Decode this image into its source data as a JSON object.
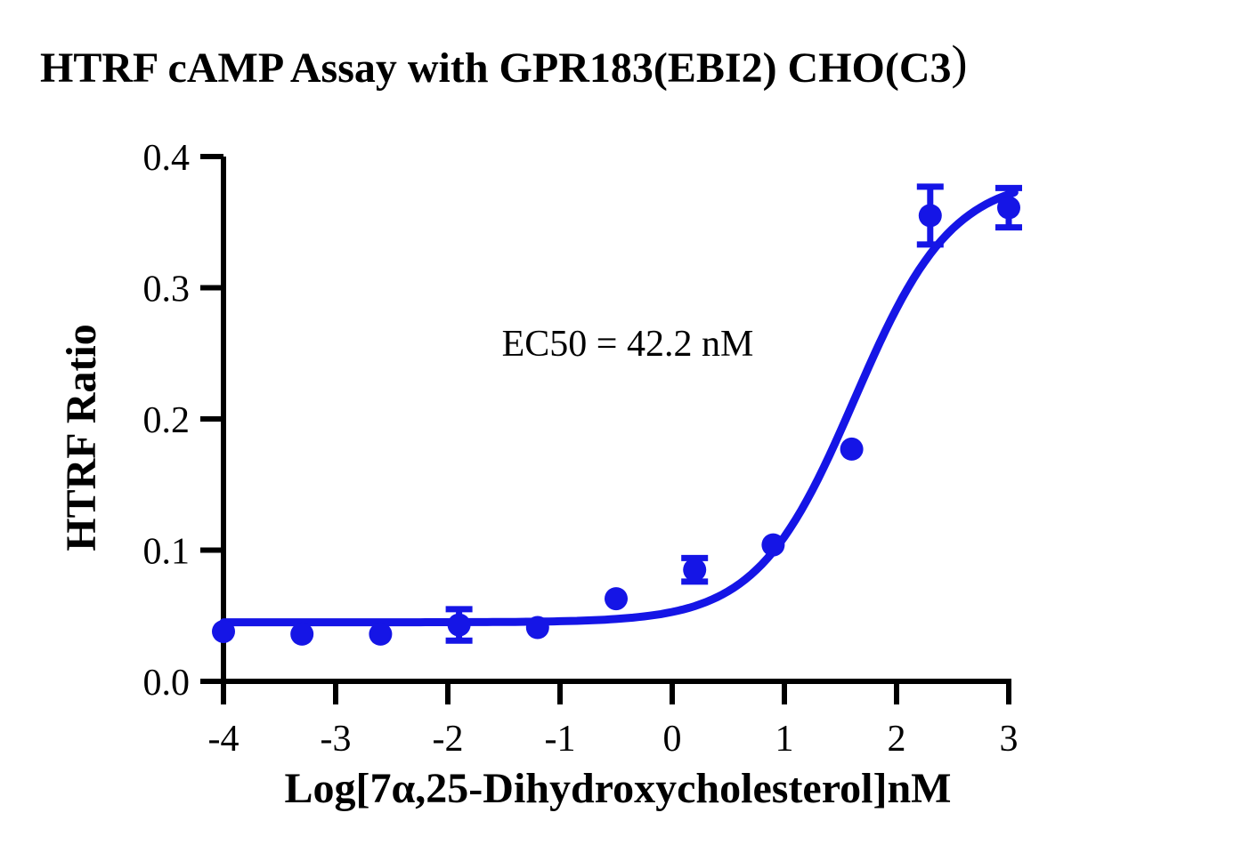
{
  "labels": {
    "title_main": "HTRF cAMP Assay with GPR183(EBI2) CHO(C3",
    "title_paren": ")",
    "ylabel": "HTRF Ratio",
    "xlabel": "Log[7α,25-Dihydroxycholesterol]nM",
    "ec50": "EC50 = 42.2 nM"
  },
  "colors": {
    "series_blue": "#1515E6",
    "axis_black": "#000000",
    "background": "#FFFFFF"
  },
  "chart_data": {
    "type": "scatter",
    "title": "HTRF cAMP Assay with GPR183(EBI2) CHO(C3)",
    "xlabel": "Log[7α,25-Dihydroxycholesterol]nM",
    "ylabel": "HTRF Ratio",
    "xlim": [
      -4,
      3
    ],
    "ylim": [
      0,
      0.4
    ],
    "xticks": [
      -4,
      -3,
      -2,
      -1,
      0,
      1,
      2,
      3
    ],
    "xtick_labels": [
      "-4",
      "-3",
      "-2",
      "-1",
      "0",
      "1",
      "2",
      "3"
    ],
    "yticks": [
      0,
      0.1,
      0.2,
      0.3,
      0.4
    ],
    "ytick_labels": [
      "0.0",
      "0.1",
      "0.2",
      "0.3",
      "0.4"
    ],
    "grid": false,
    "legend": "none",
    "annotations": [
      "EC50 = 42.2 nM"
    ],
    "series": [
      {
        "name": "7α,25-Dihydroxycholesterol",
        "color": "#1515E6",
        "marker": "circle",
        "points": [
          {
            "x": -4.0,
            "y": 0.038,
            "yerr": null
          },
          {
            "x": -3.3,
            "y": 0.036,
            "yerr": null
          },
          {
            "x": -2.6,
            "y": 0.036,
            "yerr": null
          },
          {
            "x": -1.9,
            "y": 0.043,
            "yerr": 0.012
          },
          {
            "x": -1.2,
            "y": 0.041,
            "yerr": null
          },
          {
            "x": -0.5,
            "y": 0.063,
            "yerr": null
          },
          {
            "x": 0.2,
            "y": 0.085,
            "yerr": 0.009
          },
          {
            "x": 0.9,
            "y": 0.104,
            "yerr": null
          },
          {
            "x": 1.6,
            "y": 0.177,
            "yerr": null
          },
          {
            "x": 2.3,
            "y": 0.355,
            "yerr": 0.022
          },
          {
            "x": 3.0,
            "y": 0.361,
            "yerr": 0.015
          }
        ]
      }
    ],
    "fit": {
      "model": "4PL-sigmoid",
      "bottom": 0.045,
      "top": 0.385,
      "logEC50": 1.625,
      "hill": 1.0,
      "ec50_nM": 42.2
    }
  }
}
